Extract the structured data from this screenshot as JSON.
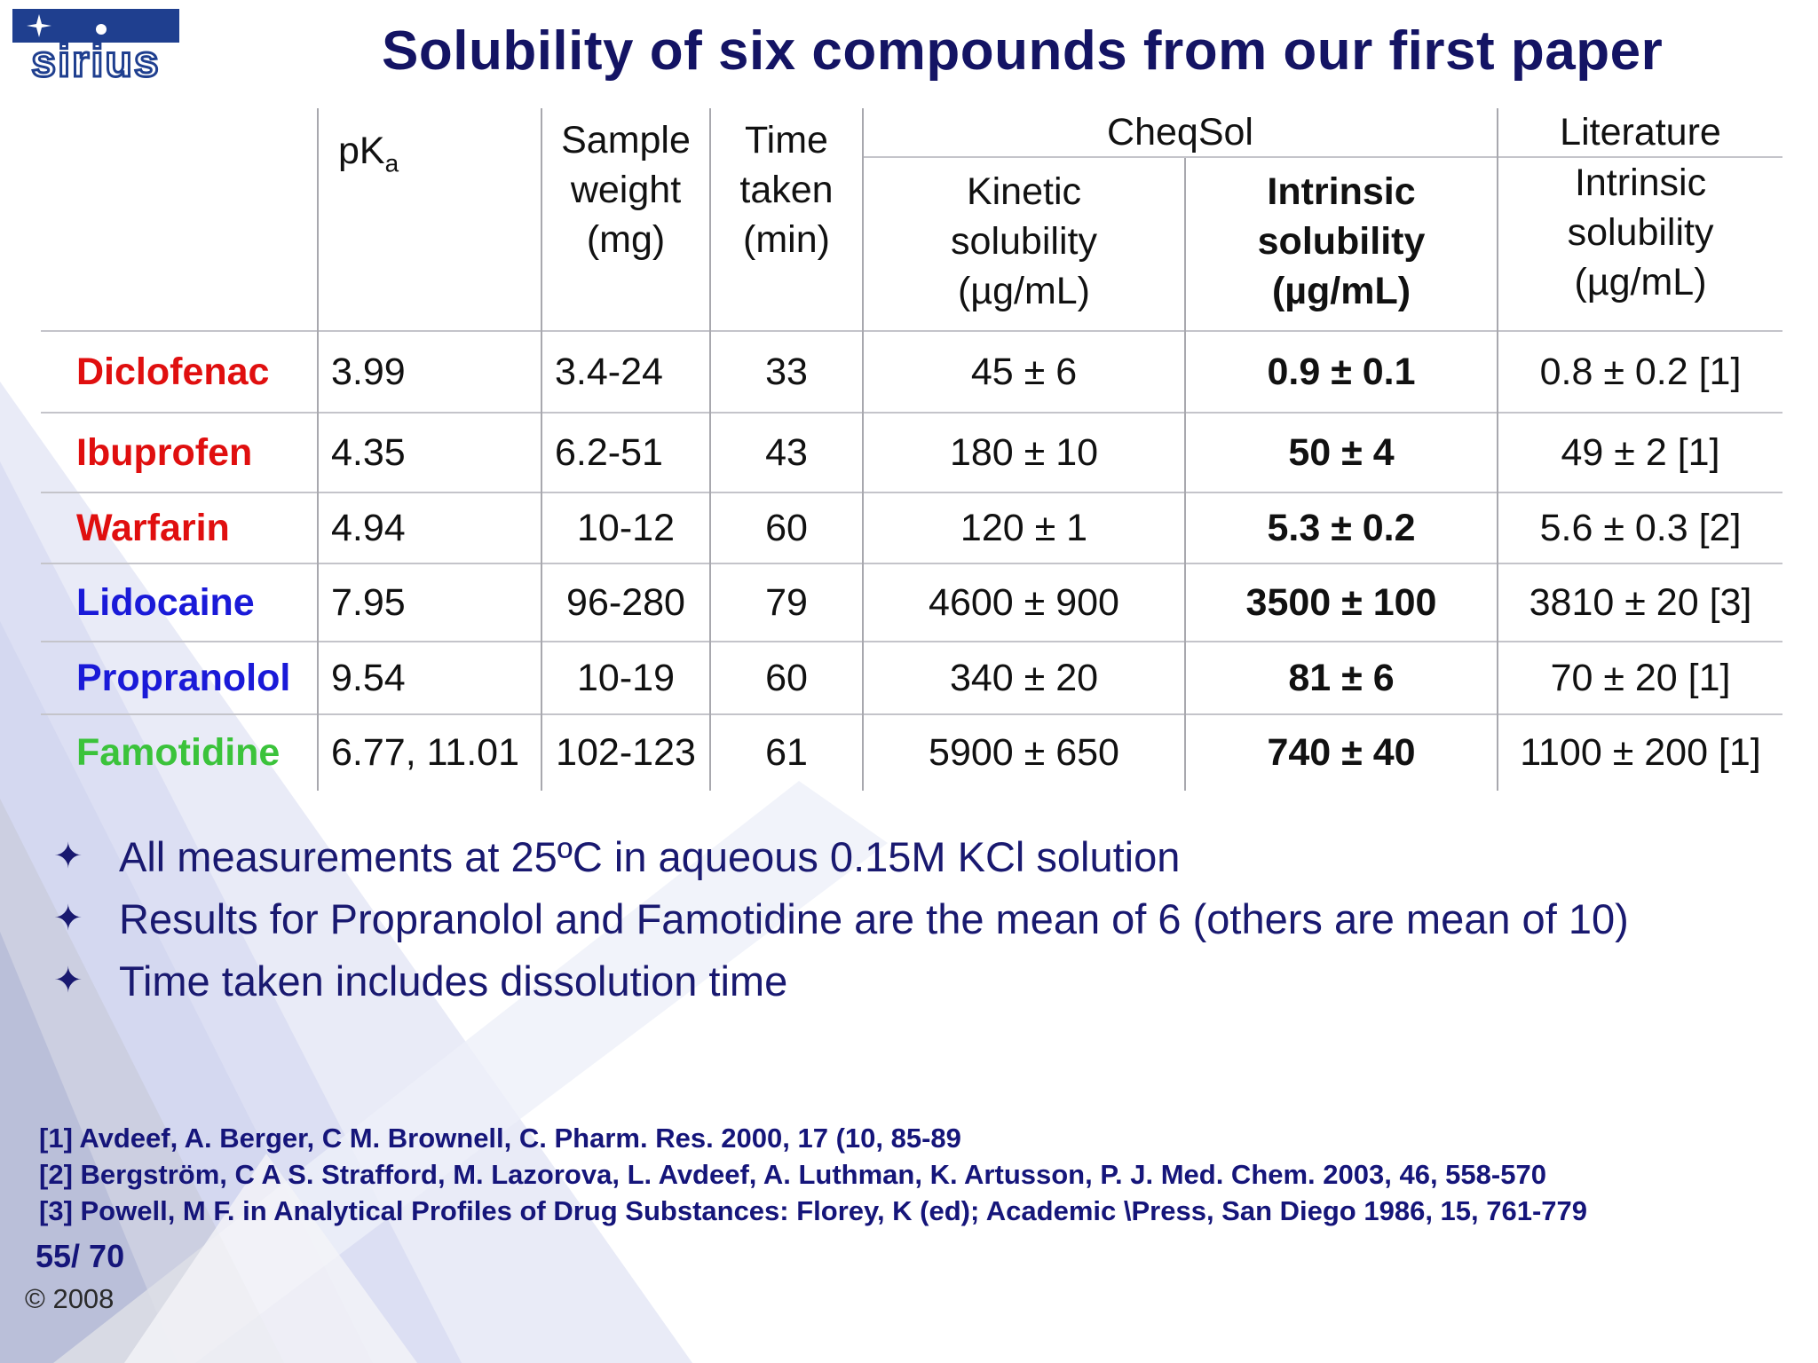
{
  "title": "Solubility of six compounds from our first paper",
  "logo_text": "sirius",
  "table": {
    "headers": {
      "pka": "pK",
      "pka_sub": "a",
      "sample_weight": [
        "Sample",
        "weight",
        "(mg)"
      ],
      "time_taken": [
        "Time",
        "taken",
        "(min)"
      ],
      "cheqsol": "CheqSol",
      "kinetic": [
        "Kinetic",
        "solubility",
        "(µg/mL)"
      ],
      "intrinsic": [
        "Intrinsic",
        "solubility",
        "(µg/mL)"
      ],
      "literature": "Literature",
      "lit_intrinsic": [
        "Intrinsic",
        "solubility",
        "(µg/mL)"
      ]
    },
    "rows": [
      {
        "name": "Diclofenac",
        "pka": "3.99",
        "weight": "3.4-24",
        "time": "33",
        "kinetic": "45 ± 6",
        "intrinsic": "0.9 ± 0.1",
        "literature": "0.8 ± 0.2 [1]"
      },
      {
        "name": "Ibuprofen",
        "pka": "4.35",
        "weight": "6.2-51",
        "time": "43",
        "kinetic": "180 ± 10",
        "intrinsic": "50 ± 4",
        "literature": "49 ± 2 [1]"
      },
      {
        "name": "Warfarin",
        "pka": "4.94",
        "weight": "10-12",
        "time": "60",
        "kinetic": "120 ± 1",
        "intrinsic": "5.3 ± 0.2",
        "literature": "5.6 ± 0.3 [2]"
      },
      {
        "name": "Lidocaine",
        "pka": "7.95",
        "weight": "96-280",
        "time": "79",
        "kinetic": "4600 ± 900",
        "intrinsic": "3500 ± 100",
        "literature": "3810 ± 20 [3]"
      },
      {
        "name": "Propranolol",
        "pka": "9.54",
        "weight": "10-19",
        "time": "60",
        "kinetic": "340 ± 20",
        "intrinsic": "81 ± 6",
        "literature": "70 ± 20 [1]"
      },
      {
        "name": "Famotidine",
        "pka": "6.77, 11.01",
        "weight": "102-123",
        "time": "61",
        "kinetic": "5900 ± 650",
        "intrinsic": "740 ± 40",
        "literature": "1100 ± 200 [1]"
      }
    ]
  },
  "bullets": [
    "All measurements at 25ºC in aqueous 0.15M KCl solution",
    "Results for Propranolol and Famotidine are the mean of 6 (others are mean of 10)",
    "Time taken includes dissolution time"
  ],
  "references": [
    "[1] Avdeef, A. Berger, C M. Brownell, C. Pharm. Res. 2000, 17 (10, 85-89",
    "[2] Bergström, C A S. Strafford, M. Lazorova, L. Avdeef, A. Luthman, K. Artusson, P. J. Med. Chem. 2003, 46, 558-570",
    "[3] Powell, M F. in Analytical Profiles of Drug Substances: Florey, K (ed); Academic \\Press, San Diego 1986, 15, 761-779"
  ],
  "page_number": "55/ 70",
  "copyright": "© 2008",
  "colors": {
    "title": "#141464",
    "acid": "#e00f0f",
    "base": "#1a1ad8",
    "ampholyte": "#3bc33b"
  }
}
